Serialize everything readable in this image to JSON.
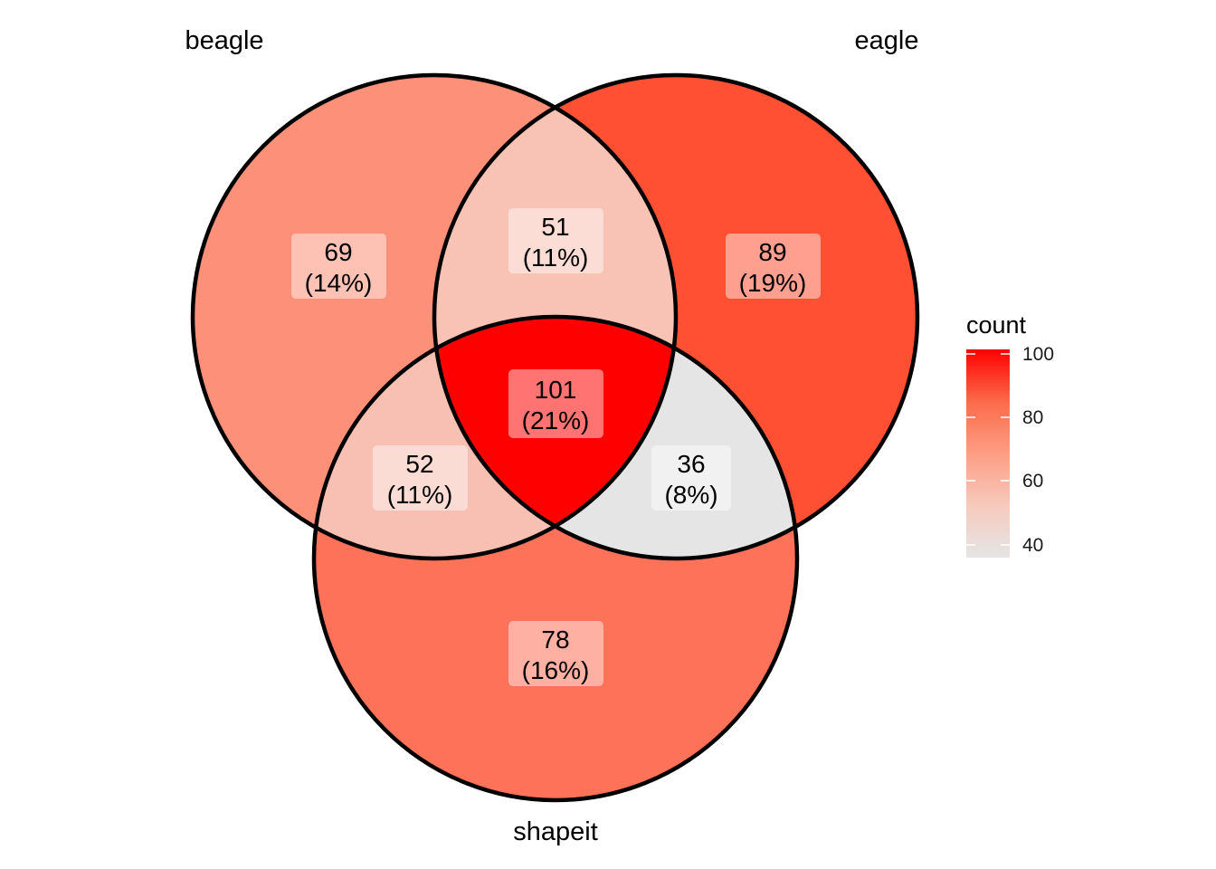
{
  "sets": [
    {
      "id": "beagle",
      "label": "beagle"
    },
    {
      "id": "eagle",
      "label": "eagle"
    },
    {
      "id": "shapeit",
      "label": "shapeit"
    }
  ],
  "regions": [
    {
      "id": "beagle-only",
      "sets": [
        "beagle"
      ],
      "count": 69,
      "count_text": "69",
      "percent_text": "(14%)"
    },
    {
      "id": "eagle-only",
      "sets": [
        "eagle"
      ],
      "count": 89,
      "count_text": "89",
      "percent_text": "(19%)"
    },
    {
      "id": "shapeit-only",
      "sets": [
        "shapeit"
      ],
      "count": 78,
      "count_text": "78",
      "percent_text": "(16%)"
    },
    {
      "id": "beagle-eagle",
      "sets": [
        "beagle",
        "eagle"
      ],
      "count": 51,
      "count_text": "51",
      "percent_text": "(11%)"
    },
    {
      "id": "beagle-shapeit",
      "sets": [
        "beagle",
        "shapeit"
      ],
      "count": 52,
      "count_text": "52",
      "percent_text": "(11%)"
    },
    {
      "id": "eagle-shapeit",
      "sets": [
        "eagle",
        "shapeit"
      ],
      "count": 36,
      "count_text": "36",
      "percent_text": "(8%)"
    },
    {
      "id": "all-three",
      "sets": [
        "beagle",
        "eagle",
        "shapeit"
      ],
      "count": 101,
      "count_text": "101",
      "percent_text": "(21%)"
    }
  ],
  "legend": {
    "title": "count",
    "ticks": [
      "100",
      "80",
      "60",
      "40"
    ],
    "low_color": "#e5e5e5",
    "high_color": "#ff0000",
    "range": [
      36,
      101
    ]
  }
}
